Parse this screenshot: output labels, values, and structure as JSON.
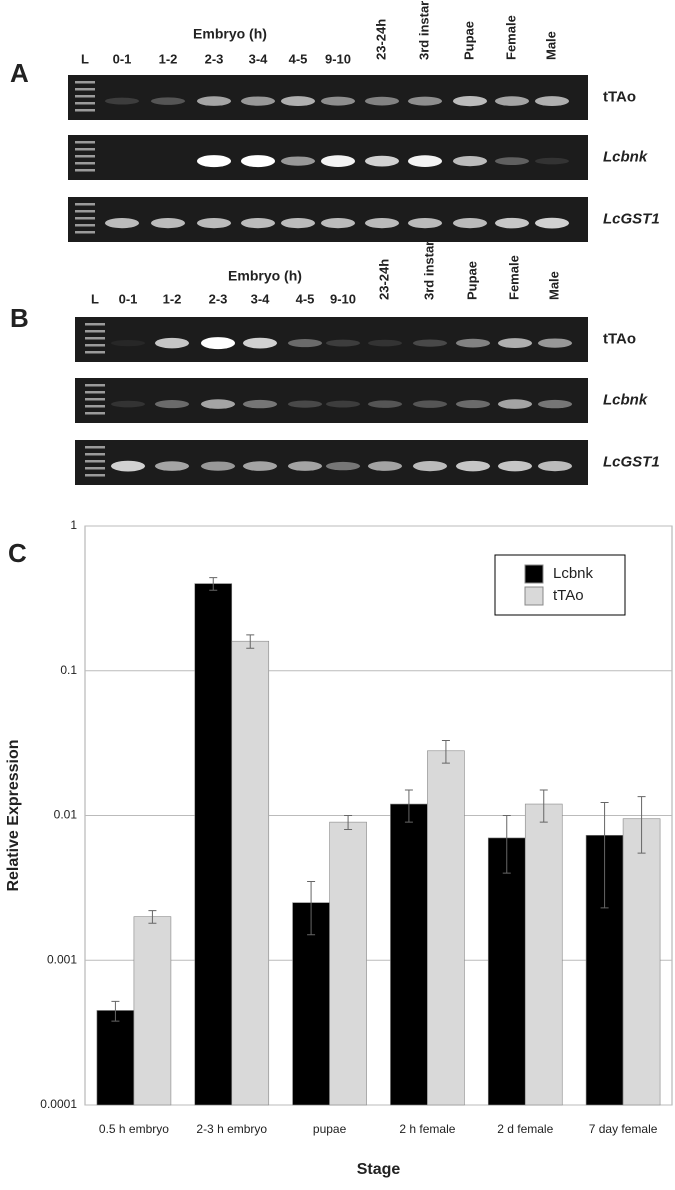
{
  "panels": [
    {
      "label": "A",
      "group_label": "Embryo (h)",
      "lanes": [
        "L",
        "0-1",
        "1-2",
        "2-3",
        "3-4",
        "4-5",
        "9-10",
        "23-24h",
        "3rd instar",
        "Pupae",
        "Female",
        "Male"
      ],
      "genes": [
        "tTAo",
        "Lcbnk",
        "LcGST1"
      ]
    },
    {
      "label": "B",
      "group_label": "Embryo (h)",
      "lanes": [
        "L",
        "0-1",
        "1-2",
        "2-3",
        "3-4",
        "4-5",
        "9-10",
        "23-24h",
        "3rd instar",
        "Pupae",
        "Female",
        "Male"
      ],
      "genes": [
        "tTAo",
        "Lcbnk",
        "LcGST1"
      ]
    }
  ],
  "chart_data": {
    "type": "bar",
    "panel_label": "C",
    "x_label": "Stage",
    "y_label": "Relative Expression",
    "categories": [
      "0.5 h embryo",
      "2-3 h embryo",
      "pupae",
      "2 h female",
      "2 d female",
      "7 day female"
    ],
    "series": [
      {
        "name": "Lcbnk",
        "color": "#000000",
        "values": [
          0.00045,
          0.4,
          0.0025,
          0.012,
          0.007,
          0.0073
        ],
        "errors": [
          7e-05,
          0.04,
          0.001,
          0.003,
          0.003,
          0.005
        ]
      },
      {
        "name": "tTAo",
        "color": "#d9d9d9",
        "values": [
          0.002,
          0.16,
          0.009,
          0.028,
          0.012,
          0.0095
        ],
        "errors": [
          0.0002,
          0.017,
          0.001,
          0.005,
          0.003,
          0.004
        ]
      }
    ],
    "log_scale": true,
    "ylim": [
      0.0001,
      1
    ],
    "yticks": [
      0.0001,
      0.001,
      0.01,
      0.1,
      1
    ],
    "grid": true,
    "legend": "top-right"
  }
}
